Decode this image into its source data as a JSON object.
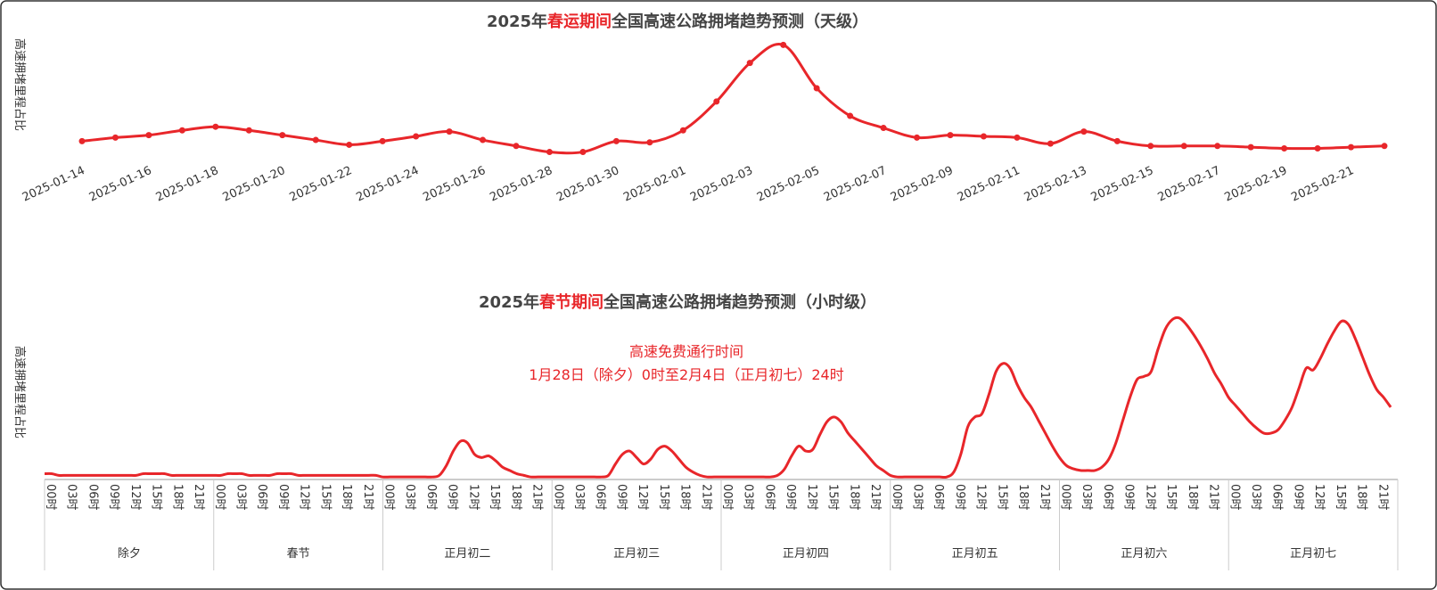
{
  "chart_data": [
    {
      "type": "line",
      "title": [
        "2025年",
        "春运期间",
        "全国高速公路拥堵趋势预测（天级）"
      ],
      "y_label": "高速拥堵里程占比",
      "categories": [
        "2025-01-14",
        null,
        "2025-01-16",
        null,
        "2025-01-18",
        null,
        "2025-01-20",
        null,
        "2025-01-22",
        null,
        "2025-01-24",
        null,
        "2025-01-26",
        null,
        "2025-01-28",
        null,
        "2025-01-30",
        null,
        "2025-02-01",
        null,
        "2025-02-03",
        null,
        "2025-02-05",
        null,
        "2025-02-07",
        null,
        "2025-02-09",
        null,
        "2025-02-11",
        null,
        "2025-02-13",
        null,
        "2025-02-15",
        null,
        "2025-02-17",
        null,
        "2025-02-19",
        null,
        "2025-02-21",
        null
      ],
      "values": [
        16,
        19,
        21,
        25,
        28,
        25,
        21,
        17,
        13,
        16,
        20,
        24,
        17,
        12,
        7,
        7,
        16,
        15,
        25,
        49,
        81,
        96,
        60,
        37,
        27,
        19,
        21,
        20,
        19,
        14,
        24,
        16,
        12,
        12,
        12,
        11,
        10,
        10,
        11,
        12
      ],
      "ylim": [
        0,
        100
      ],
      "color": "#e8262a",
      "markers": true
    },
    {
      "type": "line",
      "title": [
        "2025年",
        "春节期间",
        "全国高速公路拥堵趋势预测（小时级）"
      ],
      "y_label": "高速拥堵里程占比",
      "annotation": [
        "高速免费通行时间",
        "1月28日（除夕）0时至2月4日（正月初七）24时"
      ],
      "hour_ticks": [
        "00时",
        "03时",
        "06时",
        "09时",
        "12时",
        "15时",
        "18时",
        "21时"
      ],
      "day_groups": [
        "除夕",
        "春节",
        "正月初二",
        "正月初三",
        "正月初四",
        "正月初五",
        "正月初六",
        "正月初七"
      ],
      "values": [
        3,
        3,
        2,
        2,
        2,
        2,
        2,
        2,
        2,
        2,
        2,
        2,
        2,
        2,
        3,
        3,
        3,
        3,
        2,
        2,
        2,
        2,
        2,
        2,
        2,
        2,
        3,
        3,
        3,
        2,
        2,
        2,
        2,
        3,
        3,
        3,
        2,
        2,
        2,
        2,
        2,
        2,
        2,
        2,
        2,
        2,
        2,
        2,
        1,
        1,
        1,
        1,
        1,
        1,
        1,
        1,
        2,
        8,
        17,
        23,
        22,
        15,
        13,
        14,
        11,
        7,
        5,
        3,
        2,
        1,
        1,
        1,
        1,
        1,
        1,
        1,
        1,
        1,
        1,
        1,
        2,
        9,
        15,
        17,
        13,
        9,
        12,
        18,
        20,
        17,
        12,
        7,
        4,
        2,
        1,
        1,
        1,
        1,
        1,
        1,
        1,
        1,
        1,
        1,
        2,
        6,
        14,
        20,
        17,
        18,
        27,
        35,
        38,
        35,
        28,
        23,
        18,
        13,
        8,
        5,
        2,
        1,
        1,
        1,
        1,
        1,
        1,
        1,
        1,
        4,
        15,
        32,
        38,
        40,
        52,
        66,
        71,
        68,
        58,
        50,
        44,
        36,
        28,
        20,
        13,
        8,
        6,
        5,
        5,
        5,
        7,
        12,
        22,
        36,
        50,
        61,
        63,
        66,
        80,
        92,
        98,
        99,
        95,
        89,
        82,
        74,
        65,
        58,
        50,
        45,
        40,
        35,
        31,
        28,
        28,
        30,
        36,
        44,
        56,
        68,
        67,
        74,
        83,
        91,
        97,
        95,
        86,
        75,
        64,
        55,
        50,
        44
      ],
      "ylim": [
        0,
        100
      ],
      "color": "#e8262a",
      "markers": false
    }
  ]
}
